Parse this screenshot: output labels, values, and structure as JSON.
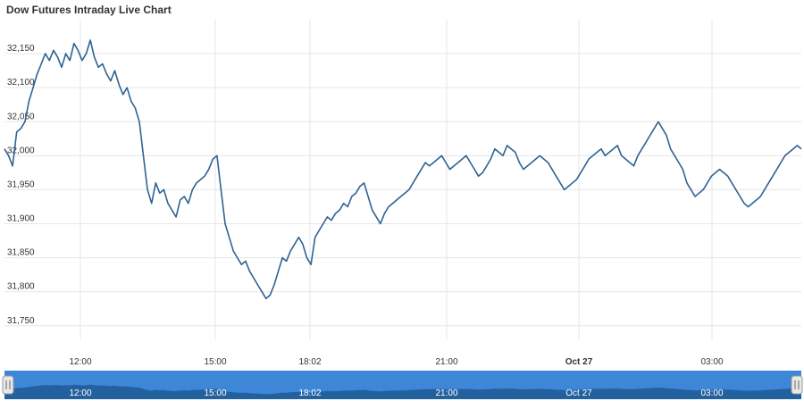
{
  "chart_data": {
    "type": "line",
    "title": "Dow Futures Intraday Live Chart",
    "y_ticks": [
      "31,750",
      "31,800",
      "31,850",
      "31,900",
      "31,950",
      "32,000",
      "32,050",
      "32,100",
      "32,150"
    ],
    "ylim": [
      31730,
      32200
    ],
    "x_ticks": [
      {
        "label": "12:00",
        "bold": false
      },
      {
        "label": "15:00",
        "bold": false
      },
      {
        "label": "18:02",
        "bold": false
      },
      {
        "label": "21:00",
        "bold": false
      },
      {
        "label": "Oct 27",
        "bold": true
      },
      {
        "label": "03:00",
        "bold": false
      }
    ],
    "grid": true,
    "series": [
      {
        "color": "#2f6294",
        "values": [
          32010,
          32000,
          31985,
          32035,
          32040,
          32050,
          32080,
          32100,
          32120,
          32135,
          32150,
          32140,
          32155,
          32145,
          32130,
          32150,
          32140,
          32165,
          32155,
          32140,
          32150,
          32170,
          32145,
          32130,
          32135,
          32120,
          32110,
          32125,
          32105,
          32090,
          32100,
          32080,
          32070,
          32050,
          32000,
          31950,
          31930,
          31960,
          31945,
          31950,
          31930,
          31920,
          31910,
          31935,
          31940,
          31930,
          31950,
          31960,
          31965,
          31970,
          31980,
          31995,
          32000,
          31950,
          31900,
          31880,
          31860,
          31850,
          31840,
          31845,
          31830,
          31820,
          31810,
          31800,
          31790,
          31795,
          31810,
          31830,
          31850,
          31845,
          31860,
          31870,
          31880,
          31870,
          31850,
          31840,
          31880,
          31890,
          31900,
          31910,
          31905,
          31915,
          31920,
          31930,
          31925,
          31940,
          31945,
          31955,
          31960,
          31940,
          31920,
          31910,
          31900,
          31915,
          31925,
          31930,
          31935,
          31940,
          31945,
          31950,
          31960,
          31970,
          31980,
          31990,
          31985,
          31990,
          31995,
          32000,
          31990,
          31980,
          31985,
          31990,
          31995,
          32000,
          31990,
          31980,
          31970,
          31975,
          31985,
          31995,
          32010,
          32005,
          32000,
          32015,
          32010,
          32005,
          31990,
          31980,
          31985,
          31990,
          31995,
          32000,
          31995,
          31990,
          31980,
          31970,
          31960,
          31950,
          31955,
          31960,
          31965,
          31975,
          31985,
          31995,
          32000,
          32005,
          32010,
          32000,
          32005,
          32010,
          32015,
          32000,
          31995,
          31990,
          31985,
          32000,
          32010,
          32020,
          32030,
          32040,
          32050,
          32040,
          32030,
          32010,
          32000,
          31990,
          31980,
          31960,
          31950,
          31940,
          31945,
          31950,
          31960,
          31970,
          31975,
          31980,
          31975,
          31970,
          31960,
          31950,
          31940,
          31930,
          31925,
          31930,
          31935,
          31940,
          31950,
          31960,
          31970,
          31980,
          31990,
          32000,
          32005,
          32010,
          32015,
          32010
        ]
      }
    ]
  }
}
